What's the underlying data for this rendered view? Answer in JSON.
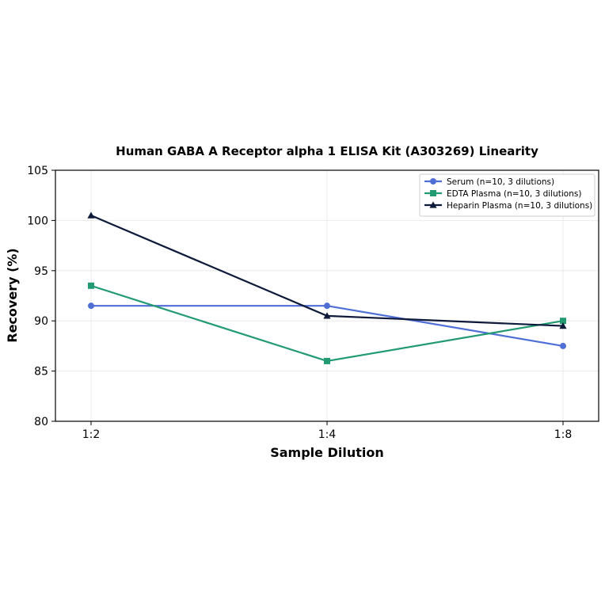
{
  "chart_data": {
    "type": "line",
    "title": "Human GABA A Receptor alpha 1 ELISA Kit (A303269) Linearity",
    "xlabel": "Sample Dilution",
    "ylabel": "Recovery (%)",
    "categories": [
      "1:2",
      "1:4",
      "1:8"
    ],
    "ylim": [
      80,
      105
    ],
    "yticks": [
      "80",
      "85",
      "90",
      "95",
      "100",
      "105"
    ],
    "grid": true,
    "legend_position": "top-right",
    "series": [
      {
        "name": "Serum (n=10, 3 dilutions)",
        "values": [
          91.5,
          91.5,
          87.5
        ],
        "color": "#4f6fd6",
        "marker": "circle"
      },
      {
        "name": "EDTA Plasma (n=10, 3 dilutions)",
        "values": [
          93.5,
          86.0,
          90.0
        ],
        "color": "#229a72",
        "marker": "square"
      },
      {
        "name": "Heparin Plasma (n=10, 3 dilutions)",
        "values": [
          100.5,
          90.5,
          89.5
        ],
        "color": "#0e1a3a",
        "marker": "triangle"
      }
    ]
  }
}
